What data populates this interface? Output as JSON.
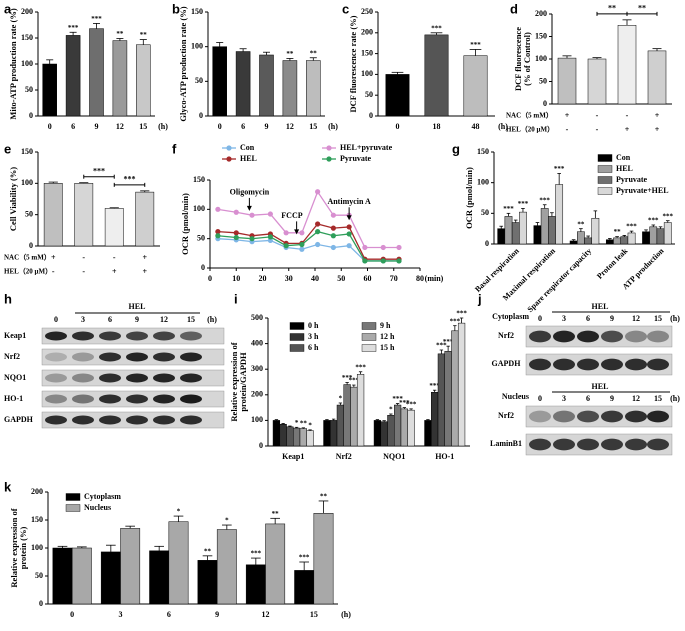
{
  "chart_data": [
    {
      "type": "bar",
      "panel": "a",
      "ylabel": "Mito-ATP production rate (%)",
      "categories": [
        "0",
        "6",
        "9",
        "12",
        "15"
      ],
      "x_unit": "(h)",
      "series": [
        {
          "colors": [
            "#000000",
            "#3a3a3a",
            "#6e6e6e",
            "#9a9a9a",
            "#c8c8c8"
          ],
          "values": [
            100,
            155,
            168,
            145,
            137
          ],
          "errors": [
            8,
            6,
            10,
            4,
            10
          ],
          "annotations": [
            null,
            "***",
            "***",
            "**",
            "**"
          ]
        }
      ],
      "ylim": [
        0,
        200
      ],
      "yticks": [
        0,
        50,
        100,
        150,
        200
      ]
    },
    {
      "type": "bar",
      "panel": "b",
      "ylabel": "Glyco-ATP production rate (%)",
      "categories": [
        "0",
        "6",
        "9",
        "12",
        "15"
      ],
      "x_unit": "(h)",
      "series": [
        {
          "colors": [
            "#000000",
            "#3a3a3a",
            "#5a5a5a",
            "#8a8a8a",
            "#bdbdbd"
          ],
          "values": [
            100,
            93,
            88,
            80,
            80
          ],
          "errors": [
            6,
            4,
            4,
            3,
            4
          ],
          "annotations": [
            null,
            null,
            null,
            "**",
            "**"
          ]
        }
      ],
      "ylim": [
        0,
        150
      ],
      "yticks": [
        0,
        50,
        100,
        150
      ]
    },
    {
      "type": "bar",
      "panel": "c",
      "ylabel": "DCF fluorescence rate (%)",
      "categories": [
        "0",
        "18",
        "48"
      ],
      "x_unit": "(h)",
      "series": [
        {
          "colors": [
            "#000000",
            "#555555",
            "#bdbdbd"
          ],
          "values": [
            100,
            195,
            145
          ],
          "errors": [
            5,
            5,
            15
          ],
          "annotations": [
            null,
            "***",
            "***"
          ]
        }
      ],
      "ylim": [
        0,
        250
      ],
      "yticks": [
        0,
        50,
        100,
        150,
        200,
        250
      ]
    },
    {
      "type": "bar",
      "panel": "d",
      "ylabel": [
        "DCF fluorescence",
        "(% of Control)"
      ],
      "categories": [
        null,
        null,
        null,
        null
      ],
      "series": [
        {
          "colors": [
            "#bfbfbf",
            "#d6d6d6",
            "#eeeeee",
            "#cfcfcf"
          ],
          "values": [
            102,
            100,
            175,
            118
          ],
          "errors": [
            5,
            3,
            12,
            5
          ]
        }
      ],
      "brackets": [
        "**",
        "**"
      ],
      "conditions": [
        {
          "label": "NAC（5 mM）",
          "marks": [
            "+",
            "-",
            "-",
            "+"
          ]
        },
        {
          "label": "HEL（20 μM）",
          "marks": [
            "-",
            "-",
            "+",
            "+"
          ]
        }
      ],
      "ylim": [
        0,
        200
      ],
      "yticks": [
        0,
        50,
        100,
        150,
        200
      ]
    },
    {
      "type": "bar",
      "panel": "e",
      "ylabel": "Cell Viability (%)",
      "categories": [
        null,
        null,
        null,
        null
      ],
      "series": [
        {
          "colors": [
            "#bfbfbf",
            "#d6d6d6",
            "#eeeeee",
            "#cfcfcf"
          ],
          "values": [
            100,
            100,
            60,
            86
          ],
          "errors": [
            2,
            1,
            1,
            2
          ]
        }
      ],
      "brackets": [
        "***",
        "***"
      ],
      "conditions": [
        {
          "label": "NAC（5 mM）",
          "marks": [
            "+",
            "-",
            "-",
            "+"
          ]
        },
        {
          "label": "HEL（20 μM）",
          "marks": [
            "-",
            "-",
            "+",
            "+"
          ]
        }
      ],
      "ylim": [
        0,
        150
      ],
      "yticks": [
        0,
        50,
        100,
        150
      ]
    },
    {
      "type": "line",
      "panel": "f",
      "ylabel": "OCR (pmol/min)",
      "x_unit": "(min)",
      "x": [
        3,
        10,
        16,
        23,
        29,
        35,
        41,
        47,
        53,
        59,
        66,
        72
      ],
      "series": [
        {
          "name": "Con",
          "color": "#7eb6e6",
          "values": [
            50,
            48,
            45,
            47,
            35,
            32,
            40,
            35,
            38,
            12,
            12,
            12
          ]
        },
        {
          "name": "HEL",
          "color": "#a52a2a",
          "values": [
            62,
            60,
            55,
            58,
            42,
            42,
            75,
            68,
            70,
            15,
            15,
            15
          ]
        },
        {
          "name": "HEL+pyruvate",
          "color": "#d88fd0",
          "values": [
            100,
            95,
            90,
            92,
            60,
            60,
            130,
            90,
            90,
            35,
            35,
            35
          ]
        },
        {
          "name": "Pyruvate",
          "color": "#2e9e5a",
          "values": [
            55,
            52,
            50,
            53,
            38,
            40,
            62,
            55,
            58,
            12,
            12,
            12
          ]
        }
      ],
      "annotations": [
        "Oligomycin",
        "FCCP",
        "Antimycin A"
      ],
      "xlim": [
        0,
        80
      ],
      "xticks": [
        0,
        10,
        20,
        30,
        40,
        50,
        60,
        70,
        80
      ],
      "ylim": [
        0,
        150
      ],
      "yticks": [
        0,
        50,
        100,
        150
      ]
    },
    {
      "type": "bar",
      "panel": "g",
      "ylabel": "OCR (pmol/min)",
      "rotated_labels": true,
      "categories": [
        "Basal respiration",
        "Maximal respiration",
        "Spare respirator capacity",
        "Proton leak",
        "ATP production"
      ],
      "series": [
        {
          "name": "Con",
          "color": "#000000",
          "values": [
            25,
            30,
            5,
            7,
            20
          ],
          "errors": [
            4,
            5,
            2,
            2,
            3
          ]
        },
        {
          "name": "HEL",
          "color": "#a0a0a0",
          "values": [
            45,
            58,
            20,
            10,
            28
          ],
          "errors": [
            5,
            6,
            5,
            2,
            3
          ],
          "annotations": [
            "***",
            "***",
            "**",
            "**",
            "***"
          ]
        },
        {
          "name": "Pyruvate",
          "color": "#707070",
          "values": [
            35,
            45,
            10,
            12,
            25
          ],
          "errors": [
            4,
            6,
            3,
            2,
            3
          ]
        },
        {
          "name": "Pyruvate+HEL",
          "color": "#d8d8d8",
          "values": [
            52,
            97,
            42,
            18,
            35
          ],
          "errors": [
            6,
            18,
            12,
            3,
            3
          ],
          "annotations": [
            "***",
            "***",
            null,
            "***",
            "***"
          ]
        }
      ],
      "ylim": [
        0,
        150
      ],
      "yticks": [
        0,
        50,
        100,
        150
      ]
    },
    {
      "type": "bar",
      "panel": "i",
      "ylabel": [
        "Relative expression of",
        "protein/GAPDH"
      ],
      "categories": [
        "Keap1",
        "Nrf2",
        "NQO1",
        "HO-1"
      ],
      "series": [
        {
          "name": "0 h",
          "color": "#000000",
          "values": [
            100,
            100,
            100,
            100
          ],
          "errors": [
            3,
            3,
            3,
            3
          ]
        },
        {
          "name": "3 h",
          "color": "#333333",
          "values": [
            85,
            100,
            95,
            210
          ],
          "errors": [
            3,
            5,
            4,
            8
          ],
          "annotations": [
            null,
            null,
            null,
            "***"
          ]
        },
        {
          "name": "6 h",
          "color": "#555555",
          "values": [
            75,
            160,
            120,
            360
          ],
          "errors": [
            3,
            8,
            5,
            15
          ],
          "annotations": [
            null,
            "*",
            "*",
            "***"
          ]
        },
        {
          "name": "9 h",
          "color": "#777777",
          "values": [
            70,
            240,
            160,
            370
          ],
          "errors": [
            3,
            8,
            6,
            20
          ],
          "annotations": [
            "*",
            "***",
            "***",
            "***"
          ]
        },
        {
          "name": "12 h",
          "color": "#aaaaaa",
          "values": [
            68,
            230,
            145,
            450
          ],
          "errors": [
            3,
            8,
            5,
            20
          ],
          "annotations": [
            "**",
            "***",
            "***",
            "***"
          ]
        },
        {
          "name": "15 h",
          "color": "#dddddd",
          "values": [
            60,
            280,
            140,
            480
          ],
          "errors": [
            3,
            10,
            5,
            20
          ],
          "annotations": [
            "*",
            "***",
            "***",
            "***"
          ]
        }
      ],
      "ylim": [
        0,
        500
      ],
      "yticks": [
        0,
        100,
        200,
        300,
        400,
        500
      ]
    },
    {
      "type": "bar",
      "panel": "k",
      "ylabel": [
        "Relative expression of",
        "protein (%)"
      ],
      "categories": [
        "0",
        "3",
        "6",
        "9",
        "12",
        "15"
      ],
      "x_unit": "(h)",
      "series": [
        {
          "name": "Cytoplasm",
          "color": "#000000",
          "values": [
            100,
            93,
            95,
            78,
            70,
            60
          ],
          "errors": [
            3,
            12,
            8,
            8,
            12,
            15
          ],
          "annotations": [
            null,
            null,
            null,
            "**",
            "***",
            "***"
          ]
        },
        {
          "name": "Nucleus",
          "color": "#a8a8a8",
          "values": [
            100,
            135,
            147,
            133,
            143,
            162
          ],
          "errors": [
            2,
            4,
            10,
            8,
            10,
            22
          ],
          "annotations": [
            null,
            null,
            "*",
            "*",
            "**",
            "**"
          ]
        }
      ],
      "ylim": [
        0,
        200
      ],
      "yticks": [
        0,
        50,
        100,
        150,
        200
      ]
    }
  ],
  "blots": {
    "h": {
      "panel": "h",
      "header": "HEL",
      "lanes": [
        "0",
        "3",
        "6",
        "9",
        "12",
        "15"
      ],
      "unit": "(h)",
      "rows": [
        "Keap1",
        "Nrf2",
        "NQO1",
        "HO-1",
        "GAPDH"
      ]
    },
    "j": {
      "panel": "j",
      "groups": [
        {
          "fraction": "Cytoplasm",
          "header": "HEL",
          "lanes": [
            "0",
            "3",
            "6",
            "9",
            "12",
            "15"
          ],
          "unit": "(h)",
          "rows": [
            "Nrf2",
            "GAPDH"
          ]
        },
        {
          "fraction": "Nucleus",
          "header": "HEL",
          "lanes": [
            "0",
            "3",
            "6",
            "9",
            "12",
            "15"
          ],
          "unit": "(h)",
          "rows": [
            "Nrf2",
            "LaminB1"
          ]
        }
      ]
    }
  }
}
